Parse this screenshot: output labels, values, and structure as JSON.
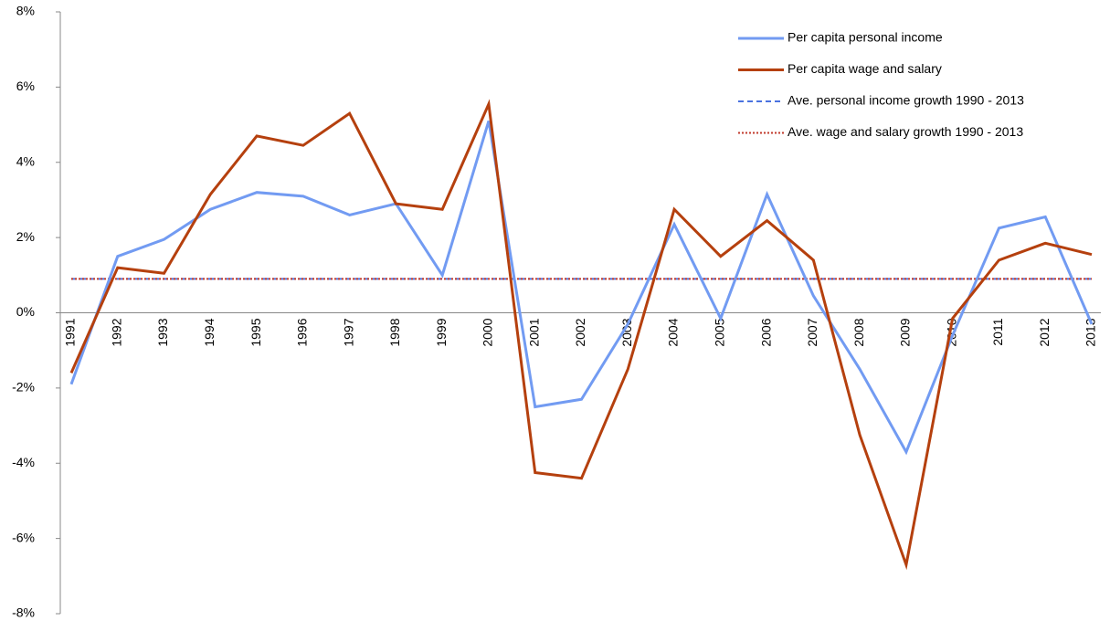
{
  "chart_data": {
    "type": "line",
    "categories": [
      "1991",
      "1992",
      "1993",
      "1994",
      "1995",
      "1996",
      "1997",
      "1998",
      "1999",
      "2000",
      "2001",
      "2002",
      "2003",
      "2004",
      "2005",
      "2006",
      "2007",
      "2008",
      "2009",
      "2010",
      "2011",
      "2012",
      "2013"
    ],
    "series": [
      {
        "name": "Per capita personal income",
        "color": "#729bf2",
        "dash": "solid",
        "values": [
          -1.9,
          1.5,
          1.95,
          2.75,
          3.2,
          3.1,
          2.6,
          2.9,
          1.0,
          5.1,
          -2.5,
          -2.3,
          -0.3,
          2.35,
          -0.15,
          3.15,
          0.45,
          -1.5,
          -3.7,
          -0.6,
          2.25,
          2.55,
          -0.3
        ]
      },
      {
        "name": "Per capita wage and salary",
        "color": "#b5400e",
        "dash": "solid",
        "values": [
          -1.6,
          1.2,
          1.05,
          3.15,
          4.7,
          4.45,
          5.3,
          2.9,
          2.75,
          5.55,
          -4.25,
          -4.4,
          -1.5,
          2.75,
          1.5,
          2.45,
          1.4,
          -3.25,
          -6.7,
          -0.15,
          1.4,
          1.85,
          1.55
        ]
      },
      {
        "name": "Ave. personal income growth 1990 - 2013",
        "color": "#4a72e0",
        "dash": "dashed",
        "values": [
          0.9,
          0.9,
          0.9,
          0.9,
          0.9,
          0.9,
          0.9,
          0.9,
          0.9,
          0.9,
          0.9,
          0.9,
          0.9,
          0.9,
          0.9,
          0.9,
          0.9,
          0.9,
          0.9,
          0.9,
          0.9,
          0.9,
          0.9
        ]
      },
      {
        "name": "Ave. wage and salary growth 1990 - 2013",
        "color": "#c0392b",
        "dash": "dotted",
        "values": [
          0.9,
          0.9,
          0.9,
          0.9,
          0.9,
          0.9,
          0.9,
          0.9,
          0.9,
          0.9,
          0.9,
          0.9,
          0.9,
          0.9,
          0.9,
          0.9,
          0.9,
          0.9,
          0.9,
          0.9,
          0.9,
          0.9,
          0.9
        ]
      }
    ],
    "ylim": [
      -8,
      8
    ],
    "yticks": [
      {
        "value": -8,
        "label": "-8%"
      },
      {
        "value": -6,
        "label": "-6%"
      },
      {
        "value": -4,
        "label": "-4%"
      },
      {
        "value": -2,
        "label": "-2%"
      },
      {
        "value": 0,
        "label": "0%"
      },
      {
        "value": 2,
        "label": "2%"
      },
      {
        "value": 4,
        "label": "4%"
      },
      {
        "value": 6,
        "label": "6%"
      },
      {
        "value": 8,
        "label": "8%"
      }
    ],
    "grid": false,
    "legend": "top-right"
  }
}
